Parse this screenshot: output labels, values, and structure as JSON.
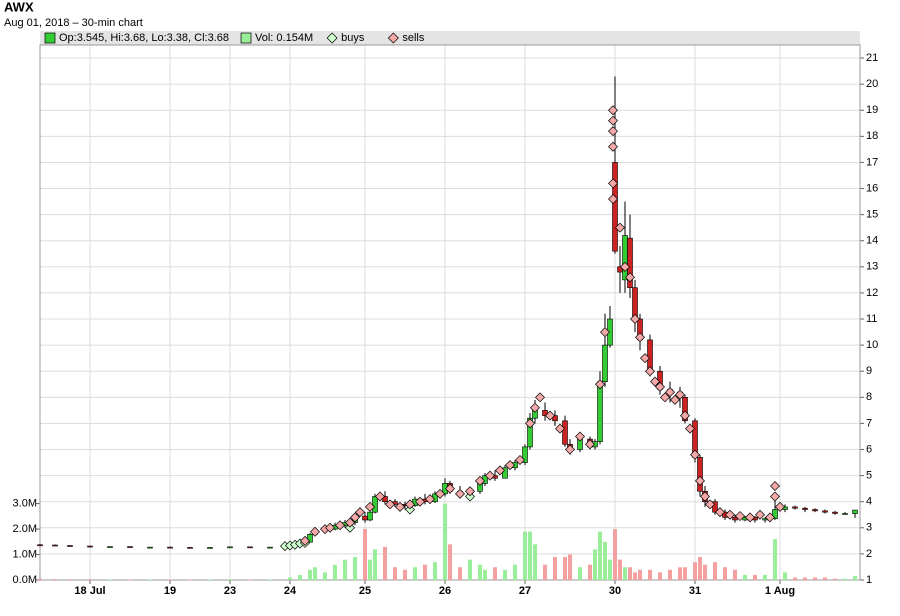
{
  "chart_data": {
    "type": "candlestick",
    "title": "AWX",
    "subtitle": "Aug 01, 2018 – 30-min chart",
    "ohlc_label": "Op:3.545, Hi:3.68, Lo:3.38, Cl:3.68",
    "volume_label": "Vol: 0.154M",
    "up_color": "#33cc33",
    "down_color": "#cc2222",
    "volume_up_color": "#99ee99",
    "volume_down_color": "#f4a0a0",
    "grid": true,
    "x": [
      0,
      3,
      6,
      10,
      14,
      18,
      22,
      26,
      30,
      34,
      38,
      42,
      46,
      50,
      52,
      54,
      55,
      57,
      59,
      61,
      63,
      65,
      66,
      67,
      69,
      71,
      73,
      75,
      77,
      79,
      81,
      82,
      84,
      86,
      88,
      89,
      91,
      93,
      95,
      97,
      98,
      99,
      101,
      103,
      105,
      106,
      108,
      110,
      111,
      112,
      113,
      114,
      115,
      116,
      117,
      118,
      119,
      120,
      122,
      124,
      126,
      128,
      129,
      131,
      132,
      133,
      135,
      137,
      139,
      141,
      143,
      145,
      147,
      149,
      151,
      153,
      155,
      157,
      159,
      161,
      163
    ],
    "open": [
      2.35,
      2.34,
      2.32,
      2.3,
      2.27,
      2.28,
      2.25,
      2.26,
      2.25,
      2.24,
      2.25,
      2.27,
      2.25,
      2.26,
      2.38,
      2.45,
      2.75,
      2.9,
      2.95,
      3.1,
      3.2,
      3.45,
      3.3,
      3.6,
      4.2,
      4.0,
      3.9,
      3.85,
      4.1,
      4.0,
      4.3,
      4.7,
      4.4,
      4.3,
      4.4,
      4.7,
      5.0,
      4.9,
      5.3,
      5.5,
      6.1,
      7.2,
      7.5,
      7.3,
      7.1,
      6.2,
      6.0,
      6.4,
      6.1,
      6.3,
      8.6,
      10.0,
      17.0,
      13.0,
      12.5,
      14.1,
      12.2,
      11.0,
      10.2,
      9.0,
      8.3,
      8.2,
      8.0,
      7.1,
      5.7,
      4.4,
      4.0,
      3.6,
      3.4,
      3.3,
      3.4,
      3.3,
      3.35,
      3.7,
      3.8,
      3.75,
      3.7,
      3.65,
      3.6,
      3.55,
      3.545
    ],
    "high": [
      2.38,
      2.36,
      2.33,
      2.32,
      2.29,
      2.29,
      2.27,
      2.28,
      2.27,
      2.26,
      2.28,
      2.28,
      2.27,
      2.4,
      2.5,
      2.8,
      3.0,
      3.05,
      3.2,
      3.3,
      3.5,
      3.6,
      3.7,
      4.3,
      4.4,
      4.1,
      4.0,
      4.2,
      4.3,
      4.4,
      4.9,
      4.8,
      4.6,
      4.5,
      4.8,
      5.1,
      5.2,
      5.4,
      5.6,
      6.2,
      7.4,
      7.9,
      7.8,
      7.5,
      7.3,
      6.4,
      6.6,
      6.5,
      6.4,
      9.0,
      11.2,
      11.5,
      20.3,
      13.8,
      15.5,
      15.0,
      12.5,
      11.2,
      10.4,
      9.2,
      8.6,
      8.4,
      8.1,
      7.2,
      5.8,
      4.6,
      4.1,
      3.7,
      3.5,
      3.45,
      3.45,
      3.4,
      4.3,
      3.9,
      3.85,
      3.8,
      3.75,
      3.7,
      3.65,
      3.6,
      3.68
    ],
    "low": [
      2.32,
      2.3,
      2.28,
      2.26,
      2.25,
      2.24,
      2.23,
      2.24,
      2.22,
      2.22,
      2.23,
      2.24,
      2.23,
      2.25,
      2.35,
      2.45,
      2.7,
      2.8,
      2.9,
      3.0,
      3.1,
      3.2,
      3.25,
      3.55,
      3.9,
      3.8,
      3.7,
      3.8,
      3.9,
      3.95,
      4.2,
      4.3,
      4.2,
      4.1,
      4.3,
      4.6,
      4.8,
      4.9,
      5.2,
      5.4,
      6.0,
      7.0,
      7.1,
      6.9,
      6.1,
      5.8,
      5.9,
      6.0,
      6.0,
      6.2,
      8.4,
      9.9,
      13.5,
      12.0,
      12.0,
      11.8,
      10.5,
      9.8,
      8.8,
      8.1,
      7.8,
      7.6,
      7.0,
      5.5,
      4.2,
      3.8,
      3.5,
      3.3,
      3.2,
      3.25,
      3.2,
      3.2,
      3.3,
      3.6,
      3.7,
      3.6,
      3.6,
      3.55,
      3.5,
      3.5,
      3.38
    ],
    "close": [
      2.34,
      2.32,
      2.3,
      2.27,
      2.28,
      2.25,
      2.26,
      2.25,
      2.24,
      2.25,
      2.27,
      2.25,
      2.26,
      2.38,
      2.45,
      2.75,
      2.9,
      2.95,
      3.1,
      3.2,
      3.4,
      3.3,
      3.6,
      4.2,
      4.0,
      3.9,
      3.85,
      4.1,
      4.0,
      4.3,
      4.7,
      4.4,
      4.3,
      4.4,
      4.7,
      5.0,
      4.9,
      5.3,
      5.5,
      6.1,
      7.2,
      7.5,
      7.3,
      7.1,
      6.2,
      6.0,
      6.4,
      6.1,
      6.3,
      8.6,
      10.0,
      11.0,
      13.6,
      12.8,
      14.2,
      12.2,
      11.0,
      10.2,
      9.0,
      8.3,
      8.2,
      8.0,
      7.1,
      5.7,
      4.4,
      4.0,
      3.6,
      3.4,
      3.3,
      3.4,
      3.3,
      3.35,
      3.7,
      3.8,
      3.75,
      3.7,
      3.65,
      3.6,
      3.55,
      3.55,
      3.68
    ],
    "volume": [
      0.05,
      0.04,
      0.03,
      0.03,
      0.02,
      0.02,
      0.02,
      0.02,
      0.02,
      0.02,
      0.03,
      0.02,
      0.02,
      0.1,
      0.2,
      0.4,
      0.5,
      0.3,
      0.6,
      0.8,
      0.9,
      2.0,
      0.8,
      1.2,
      1.3,
      0.5,
      0.4,
      0.5,
      0.6,
      0.7,
      3.0,
      1.4,
      0.5,
      0.8,
      0.6,
      0.4,
      0.5,
      0.4,
      0.6,
      1.9,
      1.9,
      1.4,
      0.6,
      0.9,
      0.9,
      1.0,
      0.5,
      0.6,
      1.2,
      1.9,
      1.5,
      0.8,
      2.0,
      0.8,
      0.5,
      0.5,
      0.3,
      0.4,
      0.4,
      0.3,
      0.4,
      0.5,
      0.5,
      0.7,
      0.9,
      0.6,
      0.7,
      0.5,
      0.4,
      0.2,
      0.2,
      0.2,
      1.6,
      0.3,
      0.1,
      0.1,
      0.1,
      0.1,
      0.05,
      0.05,
      0.154
    ],
    "series": [
      {
        "name": "buys",
        "color": "#ccffcc",
        "x": [
          49,
          50,
          51,
          52,
          53,
          62,
          74,
          86
        ],
        "values": [
          2.3,
          2.32,
          2.35,
          2.4,
          2.42,
          3.0,
          3.7,
          4.2
        ]
      },
      {
        "name": "sells",
        "color": "#f4a8a8",
        "x": [
          53,
          55,
          57,
          58,
          60,
          62,
          63,
          64,
          66,
          68,
          70,
          72,
          74,
          76,
          78,
          80,
          82,
          84,
          86,
          88,
          90,
          92,
          94,
          96,
          98,
          99,
          100,
          102,
          104,
          106,
          108,
          110,
          112,
          113,
          114.6,
          114.6,
          114.6,
          114.6,
          114.6,
          114.6,
          116,
          117,
          118,
          119,
          120,
          121,
          122,
          123,
          124,
          125,
          126,
          127,
          128,
          129,
          130,
          131,
          132,
          133,
          134,
          136,
          138,
          140,
          142,
          144,
          146,
          147,
          147,
          148
        ],
        "values": [
          2.5,
          2.85,
          2.95,
          3.0,
          3.1,
          3.2,
          3.4,
          3.6,
          3.8,
          4.2,
          3.9,
          3.8,
          3.9,
          4.0,
          4.1,
          4.3,
          4.5,
          4.3,
          4.4,
          4.8,
          5.0,
          5.2,
          5.4,
          5.6,
          7.0,
          7.6,
          8.0,
          7.3,
          6.8,
          6.0,
          6.5,
          6.2,
          8.5,
          10.5,
          15.6,
          16.2,
          17.6,
          18.2,
          18.6,
          19.0,
          14.5,
          13.0,
          12.6,
          11.0,
          10.3,
          9.5,
          9.0,
          8.6,
          8.4,
          8.0,
          8.2,
          7.9,
          8.1,
          7.3,
          6.8,
          5.8,
          4.8,
          4.2,
          3.9,
          3.6,
          3.5,
          3.45,
          3.4,
          3.5,
          3.4,
          4.6,
          4.2,
          3.8
        ]
      }
    ],
    "xlim": [
      0,
      164
    ],
    "xticks": [
      {
        "value": 10,
        "label": "18 Jul"
      },
      {
        "value": 26,
        "label": "19"
      },
      {
        "value": 38,
        "label": "23"
      },
      {
        "value": 50,
        "label": "24"
      },
      {
        "value": 65,
        "label": "25"
      },
      {
        "value": 81,
        "label": "26"
      },
      {
        "value": 97,
        "label": "27"
      },
      {
        "value": 115,
        "label": "30"
      },
      {
        "value": 131,
        "label": "31"
      },
      {
        "value": 148,
        "label": "1 Aug"
      }
    ],
    "ylim": [
      1,
      21.5
    ],
    "yticks": [
      1,
      2,
      3,
      4,
      5,
      6,
      7,
      8,
      9,
      10,
      11,
      12,
      13,
      14,
      15,
      16,
      17,
      18,
      19,
      20,
      21
    ],
    "y2lim": [
      0,
      21
    ],
    "y2ticks": [
      {
        "value": 0,
        "label": "0.0M"
      },
      {
        "value": 1,
        "label": "1.0M"
      },
      {
        "value": 2,
        "label": "2.0M"
      },
      {
        "value": 3,
        "label": "3.0M"
      }
    ]
  }
}
